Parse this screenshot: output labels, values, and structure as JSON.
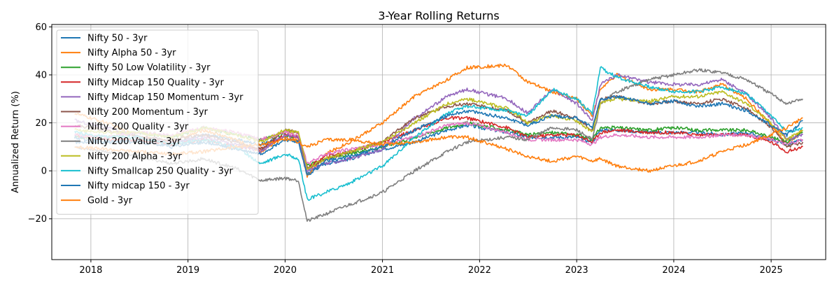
{
  "chart_data": {
    "type": "line",
    "title": "3-Year Rolling Returns",
    "xlabel": "",
    "ylabel": "Annualized Return (%)",
    "xlim": [
      "2017-08-07",
      "2025-07-25"
    ],
    "ylim": [
      -37,
      61
    ],
    "x_ticks": [
      "2018",
      "2019",
      "2020",
      "2021",
      "2022",
      "2023",
      "2024",
      "2025"
    ],
    "y_ticks": [
      -20,
      0,
      20,
      40,
      60
    ],
    "y_tick_labels": [
      "−20",
      "0",
      "20",
      "40",
      "60"
    ],
    "grid": true,
    "legend_position": "upper left",
    "x": [
      "2017-11-01",
      "2018-03-01",
      "2018-07-01",
      "2018-11-01",
      "2019-03-01",
      "2019-07-01",
      "2019-10-01",
      "2020-01-01",
      "2020-02-20",
      "2020-03-24",
      "2020-06-01",
      "2020-09-01",
      "2021-01-01",
      "2021-05-01",
      "2021-09-01",
      "2021-11-15",
      "2022-04-15",
      "2022-07-01",
      "2022-10-01",
      "2023-01-01",
      "2023-03-01",
      "2023-03-31",
      "2023-06-01",
      "2023-10-01",
      "2024-01-01",
      "2024-04-01",
      "2024-07-01",
      "2024-10-01",
      "2025-01-01",
      "2025-03-01",
      "2025-04-30"
    ],
    "series": [
      {
        "name": "Nifty 50 - 3yr",
        "color": "#1f77b4",
        "values": [
          12,
          12,
          13,
          11,
          15,
          13,
          11,
          14,
          12,
          -1,
          3,
          5,
          9,
          12,
          17,
          19,
          16,
          14,
          14,
          14,
          12,
          17,
          17,
          16,
          16,
          16,
          15,
          16,
          13,
          11,
          13
        ]
      },
      {
        "name": "Nifty Alpha 50 - 3yr",
        "color": "#ff7f0e",
        "values": [
          24,
          20,
          14,
          12,
          17,
          13,
          8,
          14,
          13,
          -2,
          7,
          12,
          20,
          31,
          38,
          43,
          44,
          37,
          33,
          30,
          23,
          34,
          40,
          34,
          34,
          33,
          36,
          30,
          19,
          11,
          17
        ]
      },
      {
        "name": "Nifty 50 Low Volatility - 3yr",
        "color": "#2ca02c",
        "values": [
          14,
          14,
          16,
          14,
          18,
          15,
          13,
          15,
          14,
          2,
          5,
          7,
          10,
          14,
          18,
          20,
          17,
          15,
          16,
          15,
          13,
          18,
          18,
          17,
          18,
          17,
          17,
          17,
          14,
          12,
          16
        ]
      },
      {
        "name": "Nifty Midcap 150 Quality - 3yr",
        "color": "#d62728",
        "values": [
          15,
          13,
          13,
          11,
          13,
          10,
          9,
          15,
          14,
          1,
          6,
          8,
          12,
          17,
          22,
          22,
          18,
          14,
          15,
          15,
          12,
          16,
          17,
          16,
          16,
          15,
          15,
          15,
          12,
          8,
          10
        ]
      },
      {
        "name": "Nifty Midcap 150 Momentum - 3yr",
        "color": "#9467bd",
        "values": [
          21,
          18,
          14,
          12,
          14,
          11,
          8,
          15,
          14,
          0,
          3,
          5,
          9,
          22,
          31,
          34,
          30,
          24,
          34,
          28,
          21,
          36,
          40,
          37,
          36,
          36,
          38,
          32,
          22,
          13,
          15
        ]
      },
      {
        "name": "Nifty 200 Momentum - 3yr",
        "color": "#8c564b",
        "values": [
          19,
          17,
          14,
          13,
          15,
          12,
          9,
          17,
          16,
          1,
          5,
          8,
          12,
          22,
          27,
          28,
          25,
          20,
          25,
          22,
          17,
          30,
          31,
          28,
          29,
          28,
          30,
          26,
          18,
          10,
          12
        ]
      },
      {
        "name": "Nifty 200 Quality - 3yr",
        "color": "#e377c2",
        "values": [
          15,
          14,
          16,
          15,
          18,
          16,
          13,
          16,
          15,
          3,
          7,
          9,
          11,
          14,
          19,
          20,
          16,
          13,
          13,
          13,
          11,
          14,
          15,
          14,
          14,
          14,
          15,
          15,
          13,
          11,
          13
        ]
      },
      {
        "name": "Nifty 200 Value - 3yr",
        "color": "#7f7f7f",
        "values": [
          10,
          8,
          6,
          3,
          5,
          1,
          -4,
          -3,
          -4,
          -21,
          -18,
          -14,
          -9,
          0,
          8,
          12,
          14,
          13,
          18,
          17,
          13,
          28,
          33,
          38,
          40,
          42,
          41,
          38,
          32,
          28,
          30
        ]
      },
      {
        "name": "Nifty 200 Alpha - 3yr",
        "color": "#bcbd22",
        "values": [
          17,
          16,
          16,
          14,
          18,
          15,
          12,
          17,
          16,
          1,
          5,
          8,
          12,
          20,
          28,
          30,
          26,
          20,
          23,
          21,
          16,
          28,
          30,
          29,
          31,
          31,
          33,
          28,
          20,
          13,
          17
        ]
      },
      {
        "name": "Nifty Smallcap 250 Quality - 3yr",
        "color": "#17becf",
        "values": [
          16,
          14,
          14,
          11,
          13,
          10,
          3,
          7,
          5,
          -12,
          -9,
          -5,
          2,
          14,
          24,
          27,
          25,
          23,
          34,
          30,
          24,
          43,
          39,
          35,
          33,
          33,
          35,
          32,
          23,
          16,
          18
        ]
      },
      {
        "name": "Nifty midcap 150 - 3yr",
        "color": "#1f77b4",
        "values": [
          14,
          12,
          12,
          10,
          12,
          9,
          7,
          13,
          12,
          -2,
          4,
          6,
          10,
          17,
          23,
          25,
          22,
          19,
          23,
          22,
          18,
          30,
          31,
          28,
          29,
          27,
          28,
          25,
          19,
          15,
          21
        ]
      },
      {
        "name": "Gold - 3yr",
        "color": "#ff7f0e",
        "values": [
          10,
          9,
          8,
          7,
          8,
          10,
          11,
          13,
          12,
          10,
          13,
          13,
          11,
          12,
          14,
          14,
          9,
          6,
          4,
          6,
          4,
          5,
          2,
          0,
          2,
          4,
          8,
          11,
          15,
          18,
          22
        ]
      }
    ]
  }
}
